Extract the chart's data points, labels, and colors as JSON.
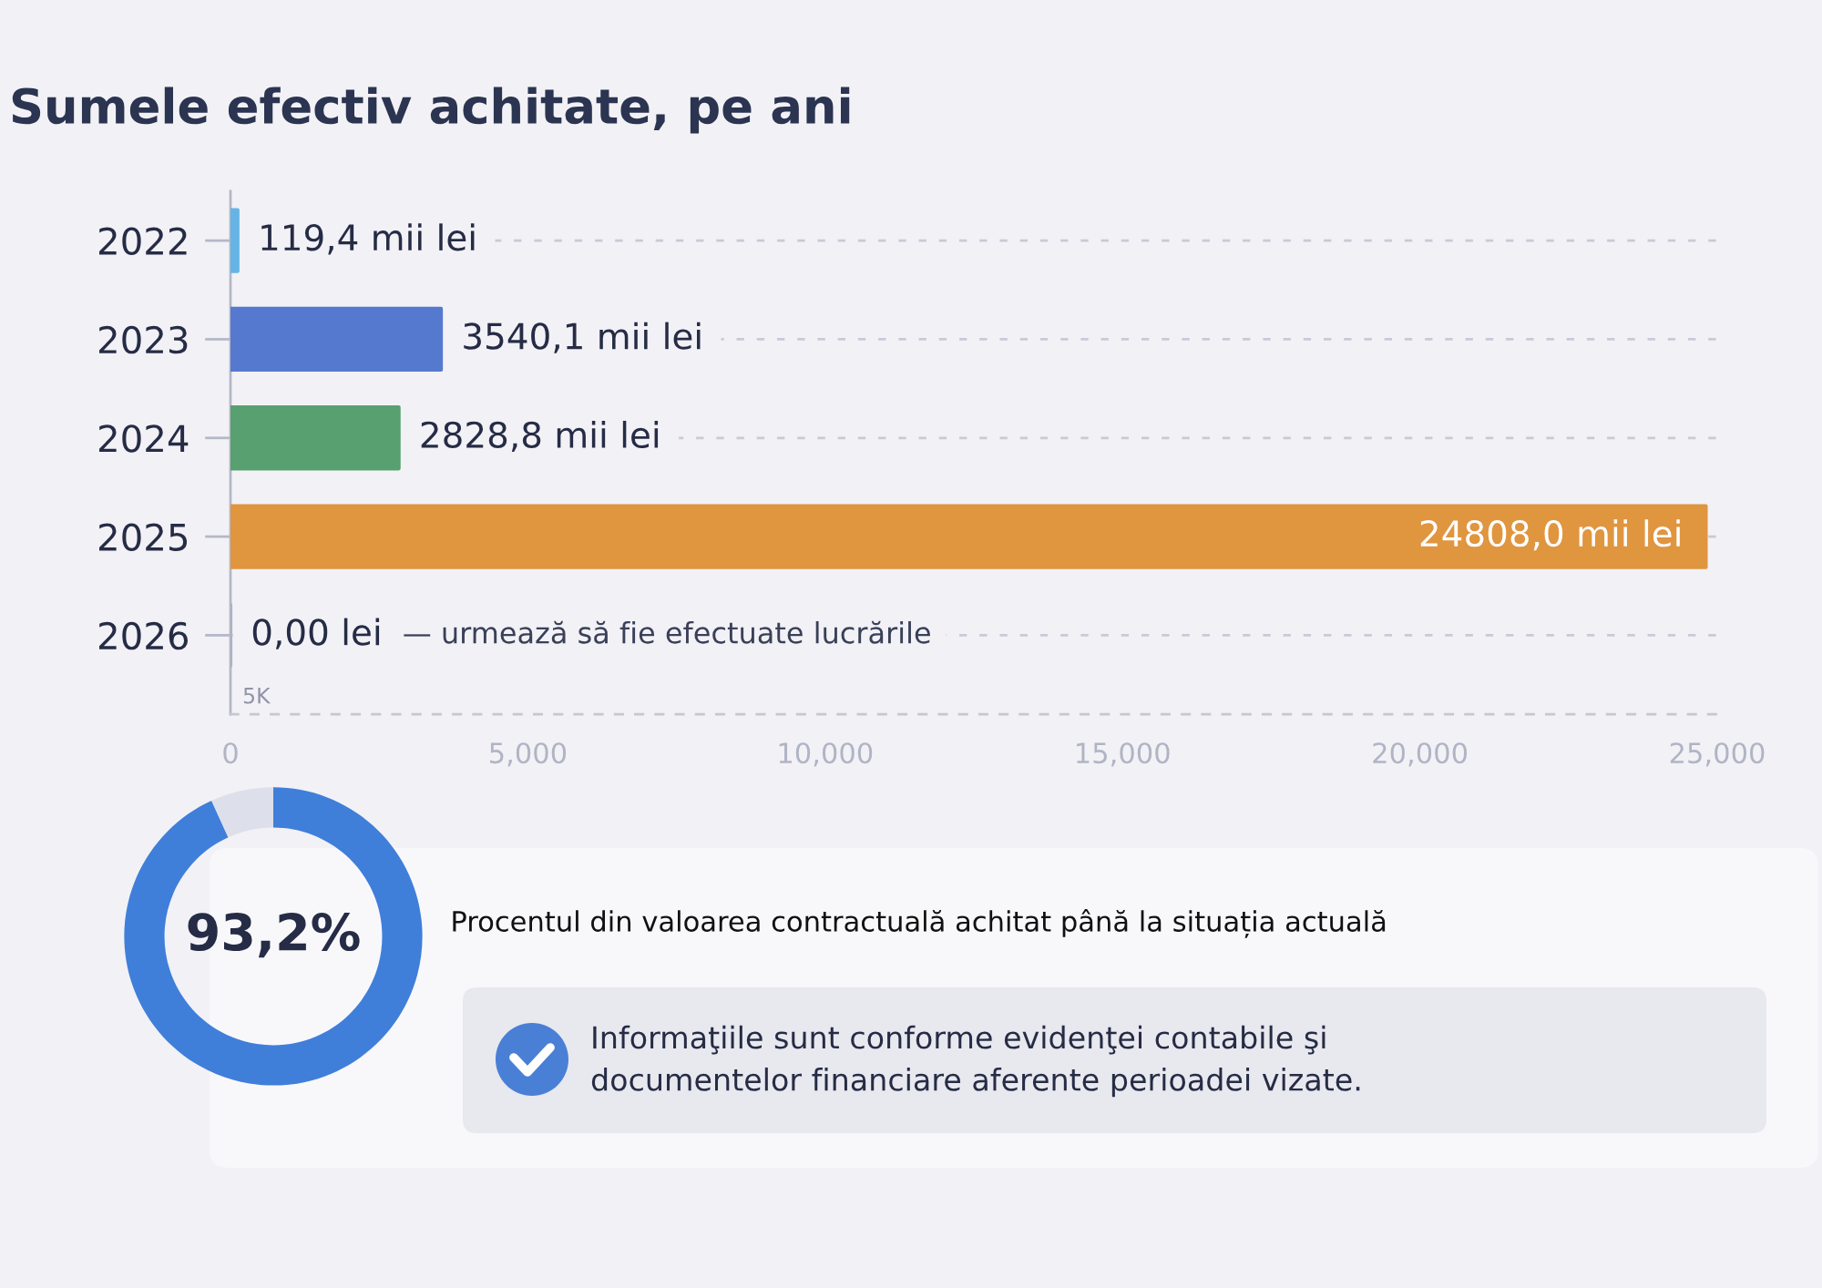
{
  "chart_data": [
    {
      "type": "bar",
      "orientation": "horizontal",
      "title": "Sumele efectiv achitate, pe ani",
      "categories": [
        "2022",
        "2023",
        "2024",
        "2025",
        "2026"
      ],
      "values": [
        119.4,
        3540.1,
        2828.8,
        24808.0,
        0
      ],
      "colors": [
        "#65b4e6",
        "#5579cf",
        "#58a070",
        "#e0953f",
        "#afb2c2"
      ],
      "value_labels": [
        "119,4 mii lei",
        "3540,1 mii lei",
        "2828,8 mii lei",
        "24808,0 mii lei",
        "0,00 lei"
      ],
      "xlim": [
        0,
        25000
      ],
      "xticks": [
        0,
        {
          "value": 5000,
          "label": "5,000"
        },
        {
          "value": 10000,
          "label": "10,000"
        },
        {
          "value": 15000,
          "label": "15,000"
        },
        {
          "value": 20000,
          "label": "20,000"
        },
        {
          "value": 25000,
          "label": "25,000"
        }
      ],
      "grid": "y",
      "annotations": [
        "— urmează să fie efectuate lucrările",
        "5K"
      ]
    },
    {
      "type": "donut",
      "title": "Procentul din valoarea contractuală achitat până la situația actuală",
      "categories": [
        null,
        null
      ],
      "values": [
        93.2,
        6.8
      ],
      "colors": [
        "#3f7fda",
        "#dde0ea"
      ],
      "value_labels": [
        "93,2%",
        null
      ],
      "annotations": [
        "Informaţiile sunt conforme evidenţei contabile şi\ndocumentelor financiare aferente perioadei vizate."
      ]
    }
  ]
}
